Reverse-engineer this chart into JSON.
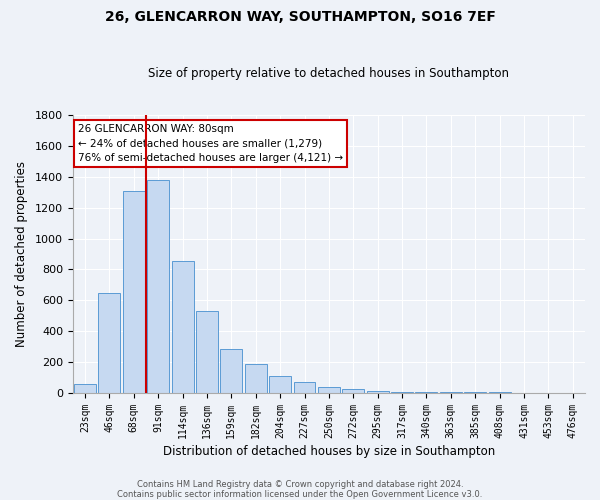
{
  "title": "26, GLENCARRON WAY, SOUTHAMPTON, SO16 7EF",
  "subtitle": "Size of property relative to detached houses in Southampton",
  "xlabel": "Distribution of detached houses by size in Southampton",
  "ylabel": "Number of detached properties",
  "bar_color": "#c6d9f1",
  "bar_edge_color": "#5b9bd5",
  "background_color": "#eef2f8",
  "grid_color": "#ffffff",
  "categories": [
    "23sqm",
    "46sqm",
    "68sqm",
    "91sqm",
    "114sqm",
    "136sqm",
    "159sqm",
    "182sqm",
    "204sqm",
    "227sqm",
    "250sqm",
    "272sqm",
    "295sqm",
    "317sqm",
    "340sqm",
    "363sqm",
    "385sqm",
    "408sqm",
    "431sqm",
    "453sqm",
    "476sqm"
  ],
  "values": [
    55,
    645,
    1310,
    1380,
    855,
    530,
    280,
    185,
    105,
    68,
    35,
    22,
    12,
    6,
    3,
    2,
    1,
    1,
    0,
    0,
    0
  ],
  "ylim": [
    0,
    1800
  ],
  "yticks": [
    0,
    200,
    400,
    600,
    800,
    1000,
    1200,
    1400,
    1600,
    1800
  ],
  "property_line_color": "#cc0000",
  "annotation_line1": "26 GLENCARRON WAY: 80sqm",
  "annotation_line2": "← 24% of detached houses are smaller (1,279)",
  "annotation_line3": "76% of semi-detached houses are larger (4,121) →",
  "annotation_box_edge_color": "#cc0000",
  "footer1": "Contains HM Land Registry data © Crown copyright and database right 2024.",
  "footer2": "Contains public sector information licensed under the Open Government Licence v3.0."
}
